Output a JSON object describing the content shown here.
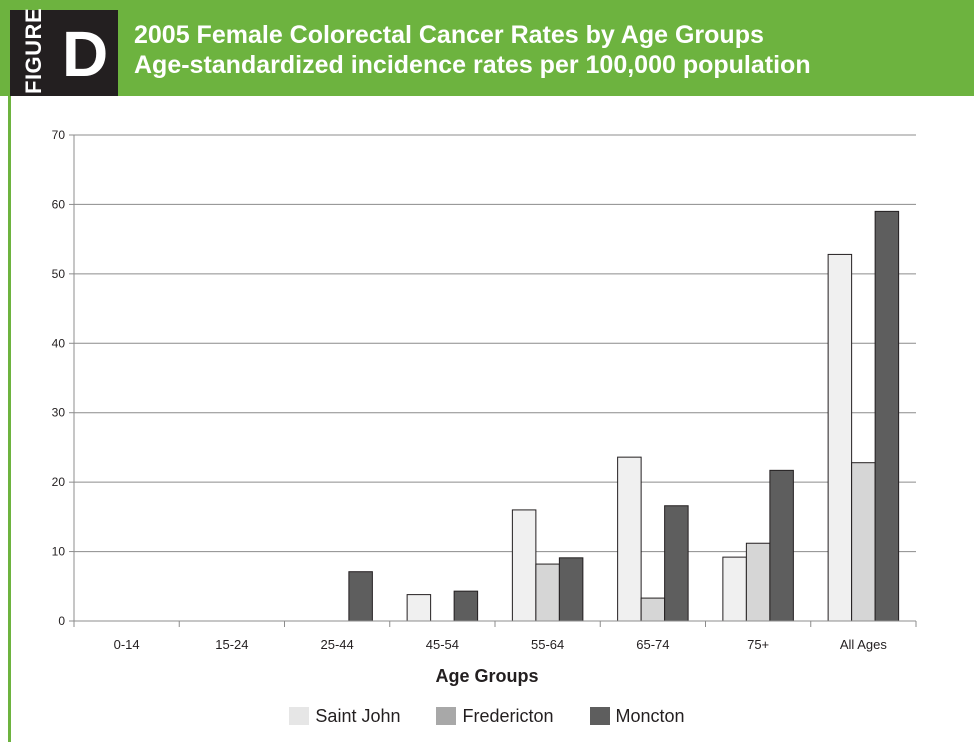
{
  "header": {
    "badge_word": "FIGURE",
    "badge_letter": "D",
    "title_line1": "2005 Female Colorectal Cancer Rates by Age Groups",
    "title_line2": "Age-standardized incidence rates per 100,000 population"
  },
  "colors": {
    "header_green": "#6db33f",
    "badge_dark": "#231f20"
  },
  "chart_data": {
    "type": "bar",
    "title": "2005 Female Colorectal Cancer Rates by Age Groups",
    "subtitle": "Age-standardized incidence rates per 100,000 population",
    "xlabel": "Age Groups",
    "ylabel": "",
    "ylim": [
      0,
      70
    ],
    "yticks": [
      0,
      10,
      20,
      30,
      40,
      50,
      60,
      70
    ],
    "grid": true,
    "legend_position": "bottom",
    "categories": [
      "0-14",
      "15-24",
      "25-44",
      "45-54",
      "55-64",
      "65-74",
      "75+",
      "All Ages"
    ],
    "series": [
      {
        "name": "Saint John",
        "color": "#f0f0f0",
        "values": [
          0,
          0,
          0,
          3.8,
          16.0,
          23.6,
          9.2,
          52.8
        ]
      },
      {
        "name": "Fredericton",
        "color": "#d6d6d6",
        "values": [
          0,
          0,
          0,
          0,
          8.2,
          3.3,
          11.2,
          22.8
        ]
      },
      {
        "name": "Moncton",
        "color": "#5e5e5e",
        "values": [
          0,
          0,
          7.1,
          4.3,
          9.1,
          16.6,
          21.7,
          59.0
        ]
      }
    ]
  },
  "legend": {
    "item1": "Saint John",
    "item2": "Fredericton",
    "item3": "Moncton",
    "swatch_colors": [
      "#e6e6e6",
      "#a8a8a8",
      "#5e5e5e"
    ]
  }
}
